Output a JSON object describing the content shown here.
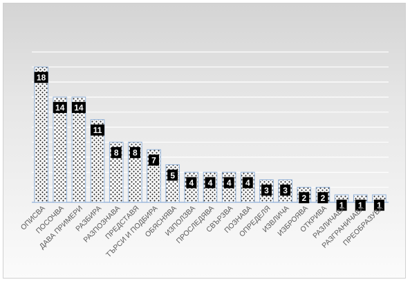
{
  "chart_data": {
    "type": "bar",
    "categories": [
      "ОПИСВА",
      "ПОСОЧВА",
      "ДАВА ПРИМЕРИ",
      "РАЗБИРА",
      "РАЗПОЗНАВА",
      "ПРЕДСТАВЯ",
      "ТЪРСИ И ПОДБИРА",
      "ОБЯСНЯВА",
      "ИЗПОЛЗВА",
      "ПРОСЛЕДЯВА",
      "СВЪРЗВА",
      "ПОЗНАВА",
      "ОПРЕДЕЛЯ",
      "ИЗВЛИЧА",
      "ИЗБРОЯВА",
      "ОТКРИВА",
      "РАЗЛИЧАВА",
      "РАЗГРАНИЧАВА",
      "ПРЕОБРАЗУВА"
    ],
    "values": [
      18,
      14,
      14,
      11,
      8,
      8,
      7,
      5,
      4,
      4,
      4,
      4,
      3,
      3,
      2,
      2,
      1,
      1,
      1
    ],
    "ylim": [
      0,
      20
    ],
    "grid": true,
    "legend": "none",
    "colors": {
      "bar_fill": "#ffffff",
      "bar_dots": "#2b2b2b",
      "bar_outline": "#8fb0d8",
      "label_bg": "#000000",
      "label_text": "#ffffff",
      "gridline": "#ffffff",
      "axis_line": "#8fb0d8"
    }
  }
}
